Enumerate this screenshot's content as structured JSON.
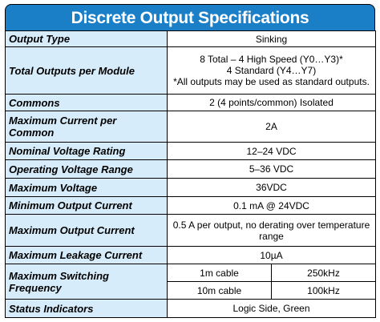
{
  "title": "Discrete Output Specifications",
  "rows": [
    {
      "label": "Output Type",
      "value": "Sinking"
    },
    {
      "label": "Total Outputs per Module",
      "lines": [
        "8 Total – 4 High Speed (Y0…Y3)*",
        "4 Standard (Y4…Y7)",
        "*All outputs may be used as standard outputs."
      ]
    },
    {
      "label": "Commons",
      "value": "2 (4 points/common) Isolated"
    },
    {
      "label": "Maximum Current per Common",
      "value": "2A"
    },
    {
      "label": "Nominal Voltage Rating",
      "value": "12–24 VDC"
    },
    {
      "label": "Operating Voltage Range",
      "value": "5–36 VDC"
    },
    {
      "label": "Maximum Voltage",
      "value": "36VDC"
    },
    {
      "label": "Minimum Output Current",
      "value": "0.1 mA @ 24VDC"
    },
    {
      "label": "Maximum Output Current",
      "value": "0.5 A per output, no derating over temperature range"
    },
    {
      "label": "Maximum Leakage Current",
      "value": "10µA"
    },
    {
      "label": "Maximum Switching Frequency",
      "sub": [
        [
          "1m cable",
          "250kHz"
        ],
        [
          "10m cable",
          "100kHz"
        ]
      ]
    },
    {
      "label": "Status Indicators",
      "value": "Logic Side, Green"
    }
  ]
}
